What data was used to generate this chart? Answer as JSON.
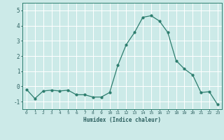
{
  "xlabel": "Humidex (Indice chaleur)",
  "x": [
    0,
    1,
    2,
    3,
    4,
    5,
    6,
    7,
    8,
    9,
    10,
    11,
    12,
    13,
    14,
    15,
    16,
    17,
    18,
    19,
    20,
    21,
    22,
    23
  ],
  "y": [
    -0.2,
    -0.8,
    -0.3,
    -0.25,
    -0.3,
    -0.25,
    -0.55,
    -0.55,
    -0.7,
    -0.7,
    -0.4,
    1.4,
    2.75,
    3.55,
    4.55,
    4.65,
    4.3,
    3.55,
    1.7,
    1.15,
    0.75,
    -0.4,
    -0.35,
    -1.2
  ],
  "ylim": [
    -1.5,
    5.5
  ],
  "yticks": [
    -1,
    0,
    1,
    2,
    3,
    4,
    5
  ],
  "bg_color": "#cceae8",
  "grid_color": "#ffffff",
  "line_color": "#2d7d6e",
  "marker_color": "#2d7d6e",
  "tick_label_color": "#2d6060",
  "xlabel_color": "#2d6060",
  "axis_color": "#2d7d6e"
}
